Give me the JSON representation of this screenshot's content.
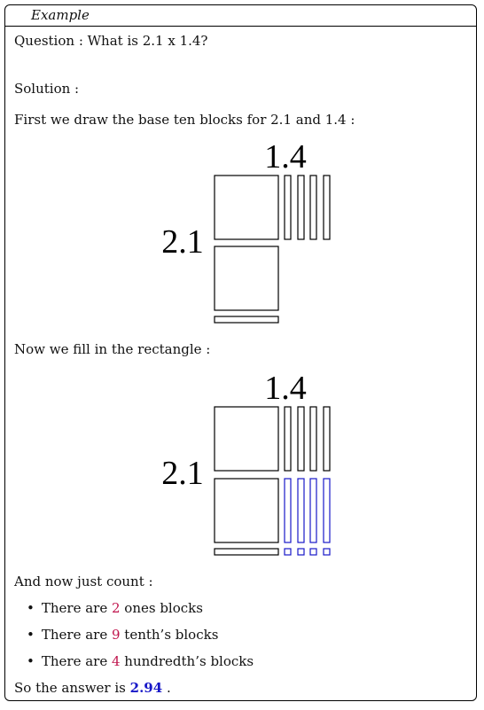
{
  "header": {
    "title": "Example"
  },
  "question": "Question : What is 2.1 x 1.4?",
  "solution_label": "Solution :",
  "step1": "First we draw the base ten blocks for 2.1 and 1.4 :",
  "diagram": {
    "top_label": "1.4",
    "left_label": "2.1"
  },
  "step2": "Now we fill in the rectangle :",
  "step3": "And now just count :",
  "bullets": [
    {
      "pre": "There are ",
      "count": "2",
      "post": " ones blocks"
    },
    {
      "pre": "There are ",
      "count": "9",
      "post": " tenth’s blocks"
    },
    {
      "pre": "There are ",
      "count": "4",
      "post": " hundredth’s blocks"
    }
  ],
  "answer": {
    "pre": "So the answer is ",
    "value": "2.94",
    "post": " ."
  },
  "colors": {
    "count": "#c0154d",
    "answer": "#1818c8",
    "fill": "#1818c8"
  }
}
